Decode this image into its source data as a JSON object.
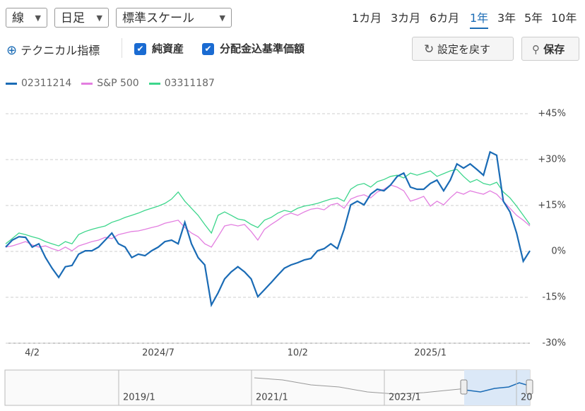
{
  "controls": {
    "chart_type": "線",
    "interval": "日足",
    "scale": "標準スケール",
    "periods": [
      "1カ月",
      "3カ月",
      "6カ月",
      "1年",
      "3年",
      "5年",
      "10年"
    ],
    "selected_period": "1年",
    "technical": "テクニカル指標",
    "checks": [
      "純資産",
      "分配金込基準価額"
    ],
    "reset": "設定を戻す",
    "save": "保存"
  },
  "chart_data": {
    "type": "line",
    "categories": [
      null,
      null,
      null,
      null,
      "4/2",
      null,
      null,
      null,
      null,
      null,
      null,
      null,
      null,
      null,
      null,
      null,
      null,
      null,
      null,
      null,
      null,
      null,
      null,
      "2024/7",
      null,
      null,
      null,
      null,
      null,
      null,
      null,
      null,
      null,
      null,
      null,
      null,
      null,
      null,
      null,
      null,
      null,
      null,
      null,
      null,
      "10/2",
      null,
      null,
      null,
      null,
      null,
      null,
      null,
      null,
      null,
      null,
      null,
      null,
      null,
      null,
      null,
      null,
      null,
      null,
      null,
      "2025/1",
      null,
      null,
      null,
      null,
      null,
      null,
      null,
      null,
      null,
      null,
      null,
      null,
      null,
      null,
      null
    ],
    "series": [
      {
        "name": "02311214",
        "color": "#1a6bb5",
        "values": [
          1.4,
          3.7,
          4.8,
          4.6,
          1.4,
          2.5,
          -2,
          -5.5,
          -8.5,
          -5,
          -4.6,
          -0.9,
          0.2,
          0.2,
          1.4,
          3.7,
          6,
          2.5,
          1.4,
          -2,
          -0.9,
          -1.4,
          0.2,
          1.4,
          3.2,
          3.7,
          2.5,
          9.5,
          2.5,
          -2,
          -4.4,
          -17.5,
          -13.6,
          -9,
          -6.7,
          -5,
          -6.7,
          -9,
          -14.8,
          -12.5,
          -10.2,
          -7.8,
          -5.5,
          -4.4,
          -3.7,
          -2.8,
          -2.3,
          0.2,
          0.9,
          2.5,
          0.9,
          7.2,
          15.2,
          16.4,
          15.2,
          18.7,
          20.3,
          19.8,
          21.7,
          24.5,
          25.6,
          21,
          20.3,
          20.3,
          22.2,
          23.3,
          19.8,
          23.3,
          28.6,
          27.2,
          28.6,
          26.8,
          24.9,
          32.5,
          31.4,
          16.4,
          12.9,
          6,
          -3.2,
          0.2
        ]
      },
      {
        "name": "S&P 500",
        "color": "#e37ee0",
        "values": [
          1.4,
          1.8,
          2.5,
          3.2,
          2.1,
          1.4,
          1.8,
          0.9,
          0.2,
          1.4,
          0.2,
          1.8,
          2.5,
          3.2,
          3.7,
          4.6,
          4.2,
          5.5,
          6,
          6.5,
          6.7,
          7.2,
          7.8,
          8.3,
          9.2,
          9.7,
          10.2,
          7.8,
          6,
          4.8,
          2.5,
          1.4,
          4.8,
          8.3,
          8.8,
          8.3,
          8.8,
          6.5,
          3.7,
          7.2,
          8.8,
          10.2,
          11.8,
          12.5,
          11.8,
          12.9,
          13.8,
          14.1,
          13.6,
          15.2,
          15.7,
          14.1,
          17.1,
          18,
          18.5,
          17.5,
          19.4,
          20.3,
          21.7,
          21,
          19.8,
          16.4,
          17.1,
          18,
          14.8,
          16.4,
          15.2,
          17.5,
          19.4,
          18.7,
          19.8,
          19.2,
          18.7,
          19.8,
          18.7,
          16.4,
          14.1,
          11.8,
          10.2,
          8.3
        ]
      },
      {
        "name": "03311187",
        "color": "#3dd68c",
        "values": [
          2.5,
          4.2,
          6,
          5.5,
          4.8,
          4.2,
          3.2,
          2.5,
          1.8,
          3.2,
          2.5,
          5.5,
          6.5,
          7.2,
          7.8,
          8.3,
          9.5,
          10.2,
          11.1,
          11.8,
          12.5,
          13.4,
          14.1,
          14.8,
          15.7,
          17.1,
          19.4,
          16.4,
          14.1,
          11.8,
          8.8,
          6,
          11.8,
          12.9,
          11.8,
          10.6,
          10.2,
          8.8,
          7.8,
          10.2,
          11.1,
          12.5,
          13.4,
          12.9,
          14.1,
          14.8,
          15.2,
          15.7,
          16.4,
          17.1,
          17.5,
          16.4,
          20.3,
          21.7,
          22.2,
          21,
          22.8,
          23.5,
          24.5,
          24.9,
          24,
          25.6,
          24.9,
          25.6,
          26.3,
          24.5,
          25.4,
          26.3,
          26.8,
          24.5,
          22.6,
          23.5,
          22.2,
          21.7,
          22.6,
          19.4,
          17.5,
          14.8,
          11.8,
          8.8
        ]
      }
    ],
    "ylim": [
      -30,
      45
    ],
    "yticks": [
      {
        "value": -30,
        "label": "-30%"
      },
      {
        "value": -15,
        "label": "-15%"
      },
      {
        "value": 0,
        "label": "0%"
      },
      {
        "value": 15,
        "label": "+15%"
      },
      {
        "value": 30,
        "label": "+30%"
      },
      {
        "value": 45,
        "label": "+45%"
      }
    ],
    "grid": true,
    "navigator_labels": [
      "2019/1",
      "2021/1",
      "2023/1",
      "20"
    ]
  }
}
